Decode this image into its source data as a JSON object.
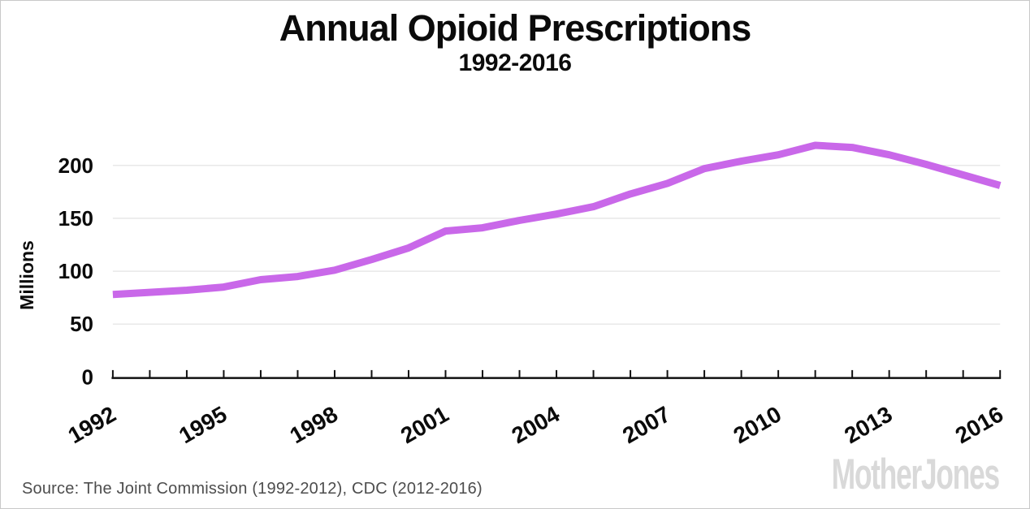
{
  "header": {
    "title": "Annual Opioid Prescriptions",
    "subtitle": "1992-2016"
  },
  "footer": {
    "source": "Source: The Joint Commission (1992-2012), CDC (2012-2016)",
    "logo": "MotherJones"
  },
  "colors": {
    "line": "#c968e9",
    "grid": "#e8e8e8",
    "axis": "#111111",
    "label": "#0b0b0b",
    "source_text": "#4d4d4d",
    "logo_gray": "#d9d9d9",
    "border": "#c9c9c9",
    "background": "#ffffff"
  },
  "chart_data": {
    "type": "line",
    "title": "Annual Opioid Prescriptions",
    "subtitle": "1992-2016",
    "xlabel": "",
    "ylabel": "Millions",
    "x": [
      1992,
      1993,
      1994,
      1995,
      1996,
      1997,
      1998,
      1999,
      2000,
      2001,
      2002,
      2003,
      2004,
      2005,
      2006,
      2007,
      2008,
      2009,
      2010,
      2011,
      2012,
      2013,
      2014,
      2015,
      2016
    ],
    "values": [
      78,
      80,
      82,
      85,
      92,
      95,
      101,
      111,
      122,
      138,
      141,
      148,
      154,
      161,
      173,
      183,
      197,
      204,
      210,
      219,
      217,
      210,
      201,
      191,
      181
    ],
    "series": [
      {
        "name": "Annual opioid prescriptions (millions)",
        "values": [
          78,
          80,
          82,
          85,
          92,
          95,
          101,
          111,
          122,
          138,
          141,
          148,
          154,
          161,
          173,
          183,
          197,
          204,
          210,
          219,
          217,
          210,
          201,
          191,
          181
        ]
      }
    ],
    "ylim": [
      0,
      240
    ],
    "yticks": [
      0,
      50,
      100,
      150,
      200
    ],
    "ytick_labels": [
      "0",
      "50",
      "100",
      "150",
      "200"
    ],
    "xtick_labeled_years": [
      1992,
      1995,
      1998,
      2001,
      2004,
      2007,
      2010,
      2013,
      2016
    ],
    "xtick_labels": [
      "1992",
      "1995",
      "1998",
      "2001",
      "2004",
      "2007",
      "2010",
      "2013",
      "2016"
    ],
    "grid": "horizontal-light",
    "legend": "none",
    "peak": {
      "year": 2011,
      "value": 219
    }
  }
}
